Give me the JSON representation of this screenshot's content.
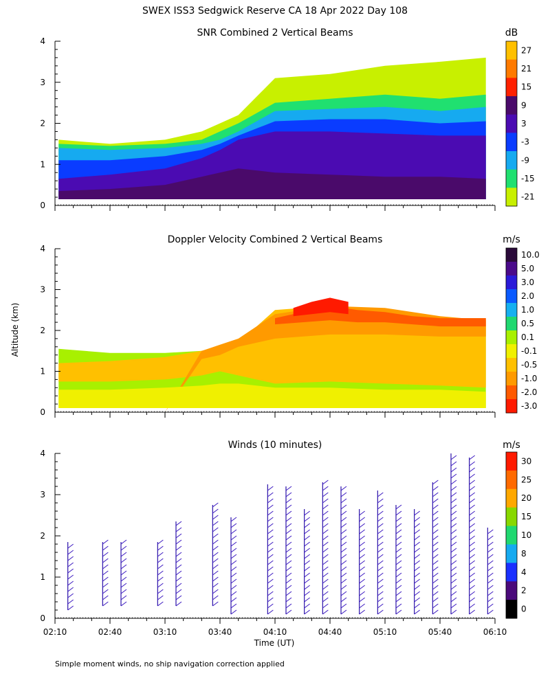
{
  "title": "SWEX ISS3 Sedgwick Reserve CA  18 Apr 2022 Day 108",
  "ylabel": "Altitude (km)",
  "xlabel": "Time (UT)",
  "footnote": "Simple moment winds, no ship navigation correction applied",
  "chart_data": [
    {
      "type": "heatmap",
      "title": "SNR Combined 2 Vertical Beams",
      "units": "dB",
      "ylim": [
        0,
        4
      ],
      "yticks": [
        "0",
        "1",
        "2",
        "3",
        "4"
      ],
      "x_range": [
        "02:10",
        "06:10"
      ],
      "colorbar": {
        "labels": [
          "27",
          "21",
          "15",
          "9",
          "3",
          "-3",
          "-9",
          "-15",
          "-21"
        ],
        "colors": [
          "#ffc000",
          "#ff7a00",
          "#ff2000",
          "#4a0a6a",
          "#4b0bb2",
          "#0a3cff",
          "#16aaf0",
          "#20e070",
          "#c8f000"
        ]
      },
      "layers": [
        {
          "value": "-21",
          "color": "#c8f000",
          "t": [
            "02:12",
            "02:40",
            "03:10",
            "03:30",
            "03:40",
            "03:50",
            "04:10",
            "04:40",
            "05:10",
            "05:40",
            "06:05"
          ],
          "top": [
            1.6,
            1.5,
            1.6,
            1.8,
            2.0,
            2.2,
            3.1,
            3.2,
            3.4,
            3.5,
            3.6
          ],
          "bottom": [
            0.15,
            0.15,
            0.15,
            0.15,
            0.15,
            0.15,
            0.15,
            0.15,
            0.15,
            0.15,
            0.15
          ]
        },
        {
          "value": "-15",
          "color": "#20e070",
          "t": [
            "02:12",
            "02:40",
            "03:10",
            "03:30",
            "03:40",
            "03:50",
            "04:10",
            "04:40",
            "05:10",
            "05:40",
            "06:05"
          ],
          "top": [
            1.5,
            1.45,
            1.5,
            1.6,
            1.8,
            2.0,
            2.5,
            2.6,
            2.7,
            2.6,
            2.7
          ],
          "bottom": [
            0.15,
            0.15,
            0.15,
            0.15,
            0.15,
            0.15,
            0.15,
            0.15,
            0.15,
            0.15,
            0.15
          ]
        },
        {
          "value": "-9",
          "color": "#16aaf0",
          "t": [
            "02:12",
            "02:40",
            "03:10",
            "03:30",
            "03:40",
            "03:50",
            "04:10",
            "04:40",
            "05:10",
            "05:40",
            "06:05"
          ],
          "top": [
            1.4,
            1.35,
            1.4,
            1.5,
            1.6,
            1.8,
            2.3,
            2.35,
            2.4,
            2.3,
            2.4
          ],
          "bottom": [
            0.15,
            0.15,
            0.15,
            0.15,
            0.15,
            0.15,
            0.15,
            0.15,
            0.15,
            0.15,
            0.15
          ]
        },
        {
          "value": "-3",
          "color": "#0a3cff",
          "t": [
            "02:12",
            "02:40",
            "03:10",
            "03:30",
            "03:40",
            "03:50",
            "04:10",
            "04:40",
            "05:10",
            "05:40",
            "06:05"
          ],
          "top": [
            1.1,
            1.1,
            1.2,
            1.35,
            1.5,
            1.7,
            2.05,
            2.1,
            2.1,
            2.0,
            2.05
          ],
          "bottom": [
            0.15,
            0.15,
            0.15,
            0.15,
            0.15,
            0.15,
            0.15,
            0.15,
            0.15,
            0.15,
            0.15
          ]
        },
        {
          "value": "3",
          "color": "#4b0bb2",
          "t": [
            "02:12",
            "02:40",
            "03:10",
            "03:30",
            "03:40",
            "03:50",
            "04:10",
            "04:40",
            "05:10",
            "05:40",
            "06:05"
          ],
          "top": [
            0.65,
            0.75,
            0.9,
            1.15,
            1.35,
            1.6,
            1.8,
            1.8,
            1.75,
            1.7,
            1.7
          ],
          "bottom": [
            0.15,
            0.15,
            0.15,
            0.15,
            0.15,
            0.15,
            0.15,
            0.15,
            0.15,
            0.15,
            0.15
          ]
        },
        {
          "value": "9",
          "color": "#4a0a6a",
          "t": [
            "02:12",
            "02:40",
            "03:10",
            "03:30",
            "03:40",
            "03:50",
            "04:10",
            "04:40",
            "05:10",
            "05:40",
            "06:05"
          ],
          "top": [
            0.35,
            0.4,
            0.5,
            0.7,
            0.8,
            0.9,
            0.8,
            0.75,
            0.7,
            0.7,
            0.65
          ],
          "bottom": [
            0.15,
            0.15,
            0.15,
            0.15,
            0.15,
            0.15,
            0.15,
            0.15,
            0.15,
            0.15,
            0.15
          ]
        }
      ]
    },
    {
      "type": "heatmap",
      "title": "Doppler Velocity Combined 2 Vertical Beams",
      "units": "m/s",
      "ylim": [
        0,
        4
      ],
      "yticks": [
        "0",
        "1",
        "2",
        "3",
        "4"
      ],
      "x_range": [
        "02:10",
        "06:10"
      ],
      "colorbar": {
        "labels": [
          "10.0",
          "5.0",
          "3.0",
          "2.0",
          "1.0",
          "0.5",
          "0.1",
          "-0.1",
          "-0.5",
          "-1.0",
          "-2.0",
          "-3.0"
        ],
        "colors": [
          "#2a0a3a",
          "#4a0a8a",
          "#2a1ad8",
          "#0a5aff",
          "#16b0f0",
          "#20d870",
          "#a8f000",
          "#f0f000",
          "#ffc000",
          "#ff9a00",
          "#ff5a00",
          "#ff1a00"
        ]
      },
      "layers": [
        {
          "value": "0.1",
          "color": "#a8f000",
          "t": [
            "02:12",
            "02:40",
            "03:10",
            "03:30",
            "03:40",
            "03:50",
            "04:10",
            "04:40",
            "05:10",
            "05:40",
            "06:05"
          ],
          "top": [
            1.55,
            1.45,
            1.45,
            1.5,
            1.6,
            1.7,
            2.1,
            2.2,
            2.3,
            2.2,
            2.1
          ],
          "bottom": [
            0.1,
            0.1,
            0.1,
            0.1,
            0.1,
            0.1,
            0.1,
            0.1,
            0.1,
            0.1,
            0.1
          ]
        },
        {
          "value": "-0.5",
          "color": "#ffc000",
          "t": [
            "02:12",
            "02:40",
            "03:10",
            "03:30",
            "03:40",
            "03:50",
            "04:10",
            "04:40",
            "05:10",
            "05:40",
            "06:05"
          ],
          "top": [
            1.2,
            1.25,
            1.35,
            1.5,
            1.6,
            1.7,
            2.5,
            2.6,
            2.5,
            2.3,
            2.3
          ],
          "bottom": [
            0.75,
            0.75,
            0.8,
            0.9,
            1.0,
            0.9,
            0.7,
            0.75,
            0.7,
            0.65,
            0.6
          ]
        },
        {
          "value": "-1.0",
          "color": "#ff9a00",
          "t": [
            "02:12",
            "02:40",
            "03:10",
            "03:30",
            "03:40",
            "03:50",
            "04:10",
            "04:40",
            "05:10",
            "05:40",
            "06:05"
          ],
          "top": [
            0.0,
            0.0,
            0.0,
            1.5,
            1.65,
            1.8,
            2.4,
            2.6,
            2.55,
            2.35,
            2.25
          ],
          "bottom": [
            0.0,
            0.0,
            0.0,
            1.3,
            1.4,
            1.6,
            1.8,
            1.9,
            1.9,
            1.85,
            1.85
          ]
        },
        {
          "value": "-2.0",
          "color": "#ff5a00",
          "t": [
            "04:10",
            "04:25",
            "04:40",
            "04:55",
            "05:10",
            "05:25",
            "05:40",
            "06:05"
          ],
          "top": [
            2.3,
            2.45,
            2.6,
            2.5,
            2.45,
            2.35,
            2.3,
            2.3
          ],
          "bottom": [
            2.15,
            2.2,
            2.25,
            2.2,
            2.2,
            2.15,
            2.1,
            2.1
          ]
        },
        {
          "value": "-3.0",
          "color": "#ff1a00",
          "t": [
            "04:20",
            "04:30",
            "04:40",
            "04:50"
          ],
          "top": [
            2.55,
            2.7,
            2.8,
            2.7
          ],
          "bottom": [
            2.35,
            2.4,
            2.45,
            2.4
          ]
        },
        {
          "value": "-0.1",
          "color": "#f0f000",
          "t": [
            "02:12",
            "02:40",
            "03:10",
            "03:30",
            "03:40",
            "03:50",
            "04:10",
            "04:40",
            "05:10",
            "05:40",
            "06:05"
          ],
          "top": [
            0.55,
            0.55,
            0.6,
            0.65,
            0.7,
            0.7,
            0.6,
            0.6,
            0.55,
            0.55,
            0.5
          ],
          "bottom": [
            0.1,
            0.1,
            0.1,
            0.1,
            0.1,
            0.1,
            0.1,
            0.1,
            0.1,
            0.1,
            0.1
          ]
        }
      ]
    },
    {
      "type": "scatter",
      "title": "Winds (10 minutes)",
      "units": "m/s",
      "ylim": [
        0,
        4
      ],
      "yticks": [
        "0",
        "1",
        "2",
        "3",
        "4"
      ],
      "xticks": [
        "02:10",
        "02:40",
        "03:10",
        "03:40",
        "04:10",
        "04:40",
        "05:10",
        "05:40",
        "06:10"
      ],
      "colorbar": {
        "labels": [
          "30",
          "25",
          "20",
          "15",
          "10",
          "8",
          "4",
          "2",
          "0"
        ],
        "colors": [
          "#ff1a00",
          "#ff6a00",
          "#ffa800",
          "#88d800",
          "#20d870",
          "#16aaf0",
          "#1a30ff",
          "#4a0a7a",
          "#000000"
        ]
      },
      "profiles": [
        {
          "time": "02:17",
          "top": 1.85,
          "bottom": 0.2
        },
        {
          "time": "02:36",
          "top": 1.85,
          "bottom": 0.3
        },
        {
          "time": "02:46",
          "top": 1.85,
          "bottom": 0.3
        },
        {
          "time": "03:06",
          "top": 1.85,
          "bottom": 0.3
        },
        {
          "time": "03:16",
          "top": 2.35,
          "bottom": 0.3
        },
        {
          "time": "03:36",
          "top": 2.75,
          "bottom": 0.3
        },
        {
          "time": "03:46",
          "top": 2.45,
          "bottom": 0.1
        },
        {
          "time": "04:06",
          "top": 3.25,
          "bottom": 0.1
        },
        {
          "time": "04:16",
          "top": 3.2,
          "bottom": 0.1
        },
        {
          "time": "04:26",
          "top": 2.65,
          "bottom": 0.1
        },
        {
          "time": "04:36",
          "top": 3.3,
          "bottom": 0.1
        },
        {
          "time": "04:46",
          "top": 3.2,
          "bottom": 0.1
        },
        {
          "time": "04:56",
          "top": 2.65,
          "bottom": 0.1
        },
        {
          "time": "05:06",
          "top": 3.1,
          "bottom": 0.1
        },
        {
          "time": "05:16",
          "top": 2.75,
          "bottom": 0.1
        },
        {
          "time": "05:26",
          "top": 2.65,
          "bottom": 0.1
        },
        {
          "time": "05:36",
          "top": 3.3,
          "bottom": 0.1
        },
        {
          "time": "05:46",
          "top": 4.0,
          "bottom": 0.1
        },
        {
          "time": "05:56",
          "top": 3.9,
          "bottom": 0.1
        },
        {
          "time": "06:06",
          "top": 2.2,
          "bottom": 0.1
        }
      ]
    }
  ]
}
